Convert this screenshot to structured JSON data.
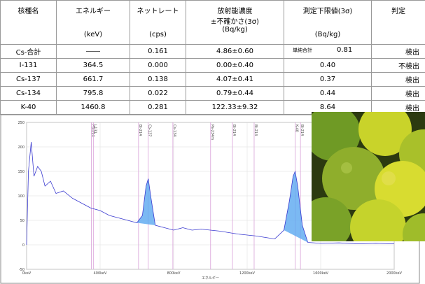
{
  "table": {
    "header": [
      [
        "核種名"
      ],
      [
        "エネルギー",
        "(keV)"
      ],
      [
        "ネットレート",
        "(cps)"
      ],
      [
        "放射能濃度",
        "±不確かさ(3σ)",
        "(Bq/kg)"
      ],
      [
        "測定下限値(3σ)",
        "(Bq/kg)"
      ],
      [
        "判定"
      ]
    ],
    "rows": [
      [
        "Cs-合計",
        "――",
        "0.161",
        "4.86±0.60",
        {
          "note": "単純合計",
          "value": "0.81"
        },
        "検出"
      ],
      [
        "I-131",
        "364.5",
        "0.000",
        "0.00±0.40",
        "0.40",
        "不検出"
      ],
      [
        "Cs-137",
        "661.7",
        "0.138",
        "4.07±0.41",
        "0.37",
        "検出"
      ],
      [
        "Cs-134",
        "795.8",
        "0.022",
        "0.79±0.44",
        "0.44",
        "検出"
      ],
      [
        "K-40",
        "1460.8",
        "0.281",
        "122.33±9.32",
        "8.64",
        "検出"
      ]
    ]
  },
  "spectrum": {
    "type": "line",
    "color": "#3a3ad0",
    "xlabel": "エネルギー",
    "xlim": [
      0,
      2000
    ],
    "ylim": [
      -50,
      250
    ],
    "xticks": [
      {
        "value": 0,
        "label": "0keV"
      },
      {
        "value": 400,
        "label": "400keV"
      },
      {
        "value": 800,
        "label": "800keV"
      },
      {
        "value": 1200,
        "label": "1200keV"
      },
      {
        "value": 1600,
        "label": "1600keV"
      },
      {
        "value": 2000,
        "label": "2000keV"
      }
    ],
    "yticks": [
      -50,
      0,
      50,
      100,
      150,
      200,
      250
    ],
    "x": [
      0,
      10,
      25,
      40,
      60,
      80,
      100,
      130,
      160,
      200,
      250,
      300,
      350,
      400,
      450,
      500,
      550,
      600,
      630,
      650,
      662,
      675,
      700,
      750,
      800,
      850,
      900,
      950,
      1000,
      1050,
      1100,
      1150,
      1200,
      1250,
      1300,
      1350,
      1400,
      1430,
      1450,
      1461,
      1475,
      1500,
      1530,
      1600,
      1700,
      1800,
      1900,
      2000
    ],
    "values": [
      0,
      150,
      210,
      140,
      160,
      150,
      120,
      130,
      105,
      110,
      95,
      85,
      75,
      70,
      60,
      55,
      50,
      45,
      60,
      120,
      135,
      100,
      40,
      35,
      30,
      35,
      30,
      32,
      30,
      28,
      25,
      22,
      20,
      18,
      15,
      12,
      30,
      90,
      140,
      150,
      120,
      40,
      5,
      3,
      4,
      2,
      3,
      2
    ],
    "peaks": [
      [
        600,
        700
      ],
      [
        1400,
        1530
      ]
    ],
    "markers": [
      {
        "x": 352,
        "label": "Pb-214"
      },
      {
        "x": 364.5,
        "label": "I-131"
      },
      {
        "x": 609,
        "label": "Bi-214"
      },
      {
        "x": 661.7,
        "label": "Cs-137"
      },
      {
        "x": 795.8,
        "label": "Cs-134"
      },
      {
        "x": 1001,
        "label": "Pa-234m"
      },
      {
        "x": 1120,
        "label": "Bi-214"
      },
      {
        "x": 1238,
        "label": "Bi-214"
      },
      {
        "x": 1460.8,
        "label": "K-40"
      },
      {
        "x": 1490,
        "label": "Bi-214"
      }
    ]
  }
}
